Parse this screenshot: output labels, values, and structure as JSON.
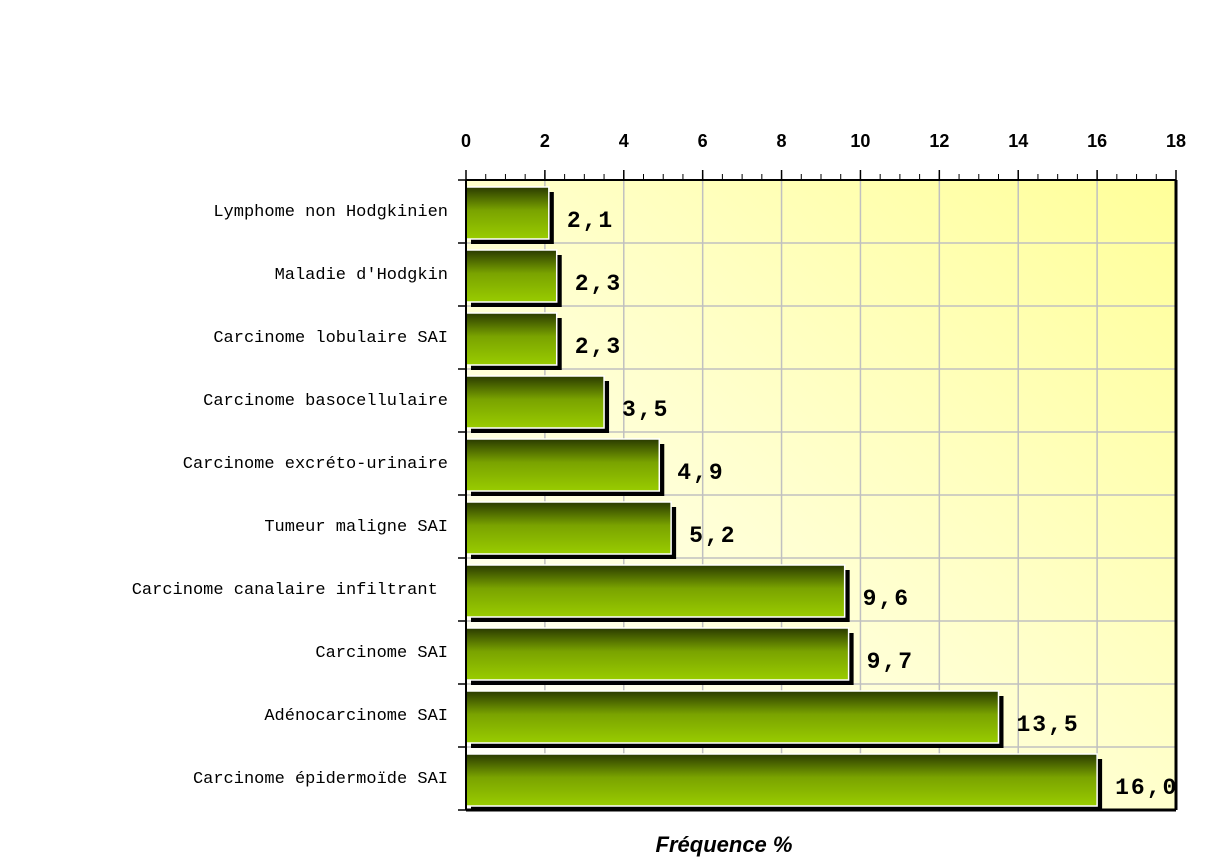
{
  "chart_data": {
    "type": "bar",
    "orientation": "horizontal",
    "x_label": "Fréquence %",
    "categories": [
      "Lymphome non Hodgkinien",
      "Maladie d'Hodgkin",
      "Carcinome lobulaire SAI",
      "Carcinome basocellulaire",
      "Carcinome excréto-urinaire",
      "Tumeur maligne SAI",
      "Carcinome canalaire infiltrant ",
      "Carcinome SAI",
      "Adénocarcinome SAI",
      "Carcinome épidermoïde SAI"
    ],
    "values": [
      2.1,
      2.3,
      2.3,
      3.5,
      4.9,
      5.2,
      9.6,
      9.7,
      13.5,
      16.0
    ],
    "value_labels": [
      "2,1",
      "2,3",
      "2,3",
      "3,5",
      "4,9",
      "5,2",
      "9,6",
      "9,7",
      "13,5",
      "16,0"
    ],
    "color": "#99cc00",
    "xlim": [
      0,
      18
    ],
    "xticks": [
      0,
      2,
      4,
      6,
      8,
      10,
      12,
      14,
      16,
      18
    ],
    "grid": true
  }
}
